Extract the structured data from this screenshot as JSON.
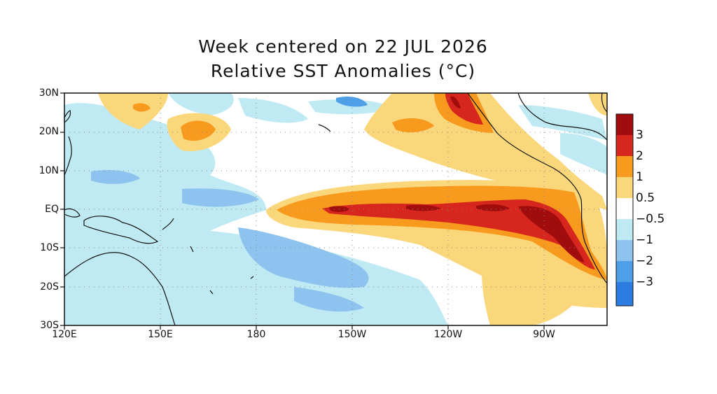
{
  "title": {
    "line1": "Week centered on 22 JUL 2026",
    "line2": "Relative SST Anomalies (°C)"
  },
  "latitude_labels": [
    "30N",
    "20N",
    "10N",
    "EQ",
    "10S",
    "20S",
    "30S"
  ],
  "longitude_labels": [
    "120E",
    "150E",
    "180",
    "150W",
    "120W",
    "90W"
  ],
  "colorbar": {
    "labels": [
      "3",
      "2",
      "1",
      "0.5",
      "−0.5",
      "−1",
      "−2",
      "−3"
    ],
    "colors": {
      "gt3": "#a10d0d",
      "2to3": "#d7261e",
      "1to2": "#f79a1d",
      "0.5to1": "#fbd77b",
      "neutral": "#ffffff",
      "-1to-0.5": "#bfeaf3",
      "-2to-1": "#8ec3ef",
      "-3to-2": "#4f9ee8",
      "lt-3": "#2d7ce0"
    }
  }
}
